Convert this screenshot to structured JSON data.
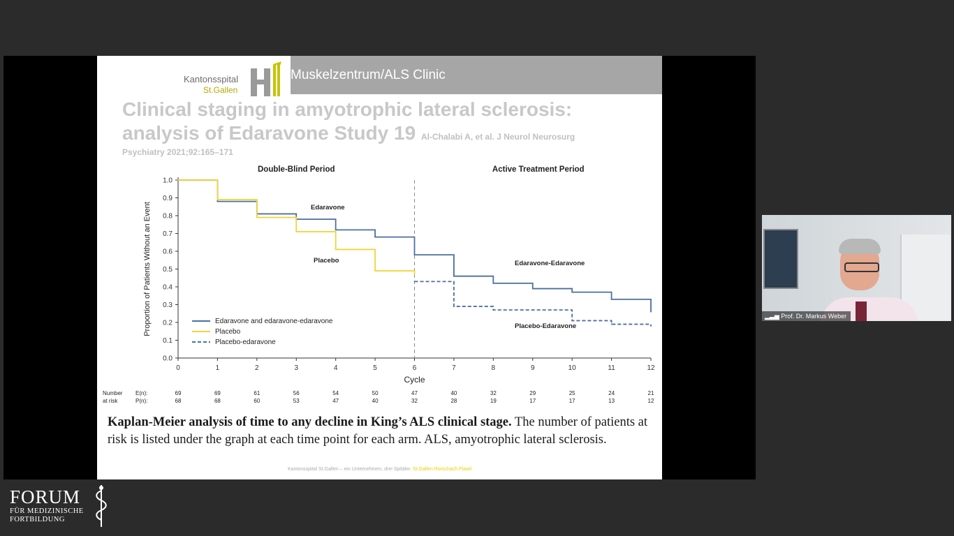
{
  "slide": {
    "header": {
      "logo_line1": "Kantonsspital",
      "logo_line2": "St.Gallen",
      "banner": "Muskelzentrum/ALS Clinic"
    },
    "title": "Clinical staging in amyotrophic lateral sclerosis: analysis of Edaravone Study 19",
    "citation_part1": "Al-Chalabi A, et al. J Neurol Neurosurg",
    "citation_part2": "Psychiatry 2021;92:165–171",
    "caption_bold": "Kaplan-Meier analysis of time to any decline in King’s ALS clinical stage.",
    "caption_rest": " The number of patients at risk is listed under the graph at each time point for each arm. ALS, amyotrophic lateral sclerosis.",
    "footer_gray": "Kantonsspital St.Gallen – ein Unternehmen, drei Spitäler.",
    "footer_yellow": "St.Gallen  Rorschach  Flawil"
  },
  "chart_data": {
    "type": "line",
    "step": true,
    "xlabel": "Cycle",
    "ylabel": "Proportion of Patients Without an Event",
    "xlim": [
      0,
      12
    ],
    "ylim": [
      0,
      1.0
    ],
    "x_ticks": [
      0,
      1,
      2,
      3,
      4,
      5,
      6,
      7,
      8,
      9,
      10,
      11,
      12
    ],
    "y_ticks": [
      "0.0",
      "0.1",
      "0.2",
      "0.3",
      "0.4",
      "0.5",
      "0.6",
      "0.7",
      "0.8",
      "0.9",
      "1.0"
    ],
    "period_divider_x": 6,
    "period_labels": [
      "Double-Blind Period",
      "Active Treatment Period"
    ],
    "annotations": [
      "Edaravone",
      "Placebo",
      "Edaravone-Edaravone",
      "Placebo-Edaravone"
    ],
    "legend": [
      "Edaravone and edaravone-edaravone",
      "Placebo",
      "Placebo-edaravone"
    ],
    "legend_position": "bottom-left",
    "series": [
      {
        "name": "Edaravone and edaravone-edaravone",
        "color": "#4a6fa5",
        "style": "solid",
        "x": [
          0,
          1,
          2,
          3,
          4,
          5,
          6,
          7,
          8,
          9,
          10,
          11,
          12
        ],
        "y": [
          1.0,
          0.88,
          0.81,
          0.78,
          0.72,
          0.68,
          0.58,
          0.46,
          0.42,
          0.39,
          0.37,
          0.33,
          0.26
        ]
      },
      {
        "name": "Placebo",
        "color": "#f2d43a",
        "style": "solid",
        "x": [
          0,
          1,
          2,
          3,
          4,
          5,
          6
        ],
        "y": [
          1.0,
          0.89,
          0.79,
          0.71,
          0.61,
          0.49,
          0.47
        ]
      },
      {
        "name": "Placebo-edaravone",
        "color": "#4a6fa5",
        "style": "dashed",
        "x": [
          6,
          7,
          8,
          9,
          10,
          11,
          12
        ],
        "y": [
          0.43,
          0.29,
          0.27,
          0.27,
          0.21,
          0.19,
          0.18
        ]
      }
    ],
    "at_risk": {
      "label_line1": "Number",
      "label_line2": "at risk",
      "rows": [
        {
          "label": "E(n):",
          "values": [
            69,
            69,
            61,
            56,
            54,
            50,
            47,
            40,
            32,
            29,
            25,
            24,
            21
          ]
        },
        {
          "label": "P(n):",
          "values": [
            68,
            68,
            60,
            53,
            47,
            40,
            32,
            28,
            19,
            17,
            17,
            13,
            12
          ]
        }
      ]
    }
  },
  "speaker": {
    "name": "Prof. Dr. Markus Weber"
  },
  "branding": {
    "forum_big": "FORUM",
    "forum_line2": "FÜR MEDIZINISCHE",
    "forum_line3": "FORTBILDUNG"
  }
}
